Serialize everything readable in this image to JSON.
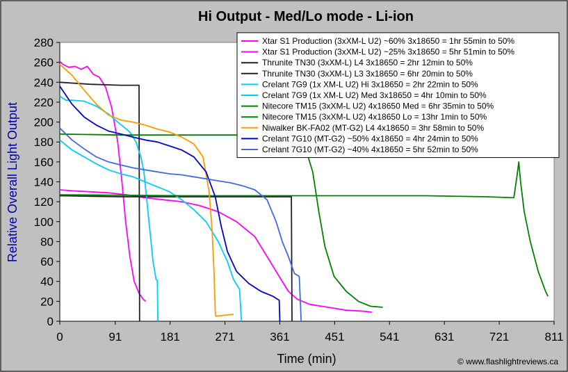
{
  "chart_data": {
    "type": "line",
    "title": "Hi Output - Med/Lo mode - Li-ion",
    "xlabel": "Time (min)",
    "ylabel": "Relative Overall Light Output",
    "xlim": [
      0,
      811
    ],
    "ylim": [
      0,
      280
    ],
    "xticks": [
      0,
      91,
      181,
      271,
      361,
      451,
      541,
      631,
      721,
      811
    ],
    "yticks": [
      0,
      20,
      40,
      60,
      80,
      100,
      120,
      140,
      160,
      180,
      200,
      220,
      240,
      260,
      280
    ],
    "grid": false,
    "legend_position": "top-right",
    "credit": "© www.flashlightreviews.ca",
    "series": [
      {
        "name": "Xtar S1 Production (3xXM-L U2) ~60% 3x18650 = 1hr 55min to 50%",
        "color": "#ff00ff",
        "points": [
          [
            0,
            261
          ],
          [
            5,
            258
          ],
          [
            15,
            255
          ],
          [
            25,
            256
          ],
          [
            35,
            253
          ],
          [
            45,
            256
          ],
          [
            55,
            248
          ],
          [
            65,
            245
          ],
          [
            75,
            235
          ],
          [
            85,
            215
          ],
          [
            95,
            180
          ],
          [
            102,
            140
          ],
          [
            108,
            100
          ],
          [
            115,
            65
          ],
          [
            122,
            40
          ],
          [
            130,
            28
          ],
          [
            137,
            22
          ],
          [
            141,
            20
          ]
        ]
      },
      {
        "name": "Xtar S1 Production (3xXM-L U2) ~25% 3x18650 = 5hr 51min to 50%",
        "color": "#ff00ff",
        "points": [
          [
            0,
            132
          ],
          [
            20,
            131
          ],
          [
            50,
            130
          ],
          [
            80,
            129
          ],
          [
            110,
            127
          ],
          [
            140,
            124
          ],
          [
            170,
            122
          ],
          [
            200,
            120
          ],
          [
            230,
            116
          ],
          [
            260,
            110
          ],
          [
            290,
            100
          ],
          [
            320,
            85
          ],
          [
            340,
            65
          ],
          [
            360,
            45
          ],
          [
            375,
            30
          ],
          [
            390,
            22
          ],
          [
            410,
            17
          ],
          [
            440,
            14
          ],
          [
            470,
            11
          ],
          [
            500,
            10
          ],
          [
            512,
            9
          ]
        ]
      },
      {
        "name": "Thrunite TN30 (3xXM-L) L4 3x18650 = 2hr 12min to 50%",
        "color": "#202020",
        "points": [
          [
            0,
            240
          ],
          [
            50,
            238
          ],
          [
            100,
            237
          ],
          [
            130,
            237
          ],
          [
            131,
            0
          ]
        ]
      },
      {
        "name": "Thrunite TN30 (3xXM-L) L3 3x18650 = 6hr 20min to 50%",
        "color": "#202020",
        "points": [
          [
            0,
            126
          ],
          [
            100,
            125
          ],
          [
            200,
            125
          ],
          [
            300,
            125
          ],
          [
            380,
            125
          ],
          [
            381,
            0
          ]
        ]
      },
      {
        "name": "Crelant 7G9 (1x XM-L U2) Hi 3x18650 = 2hr 22min to 50%",
        "color": "#00ccff",
        "points": [
          [
            0,
            226
          ],
          [
            10,
            222
          ],
          [
            20,
            222
          ],
          [
            40,
            221
          ],
          [
            60,
            216
          ],
          [
            80,
            208
          ],
          [
            95,
            200
          ],
          [
            105,
            195
          ],
          [
            115,
            190
          ],
          [
            125,
            180
          ],
          [
            133,
            165
          ],
          [
            138,
            150
          ],
          [
            143,
            120
          ],
          [
            148,
            90
          ],
          [
            153,
            60
          ],
          [
            158,
            42
          ],
          [
            160,
            41
          ],
          [
            161,
            0
          ]
        ]
      },
      {
        "name": "Crelant 7G9 (1x XM-L U2) Med 3x18650 = 4hr 10min to 50%",
        "color": "#00ccff",
        "points": [
          [
            0,
            182
          ],
          [
            20,
            172
          ],
          [
            40,
            165
          ],
          [
            60,
            158
          ],
          [
            80,
            152
          ],
          [
            100,
            148
          ],
          [
            120,
            145
          ],
          [
            140,
            140
          ],
          [
            160,
            135
          ],
          [
            180,
            130
          ],
          [
            200,
            122
          ],
          [
            220,
            112
          ],
          [
            240,
            100
          ],
          [
            260,
            80
          ],
          [
            275,
            60
          ],
          [
            285,
            42
          ],
          [
            295,
            32
          ],
          [
            298,
            0
          ]
        ]
      },
      {
        "name": "Nitecore TM15 (3xXM-L U2) 4x18650 Med = 6hr 35min to 50%",
        "color": "#008000",
        "points": [
          [
            0,
            188
          ],
          [
            100,
            187
          ],
          [
            200,
            187
          ],
          [
            300,
            187
          ],
          [
            380,
            187
          ],
          [
            400,
            180
          ],
          [
            415,
            150
          ],
          [
            425,
            110
          ],
          [
            435,
            75
          ],
          [
            450,
            45
          ],
          [
            470,
            30
          ],
          [
            490,
            20
          ],
          [
            510,
            15
          ],
          [
            530,
            14
          ]
        ]
      },
      {
        "name": "Nitecore TM15 (3xXM-L U2) 4x18650 Lo = 13hr 1min to 50%",
        "color": "#008000",
        "points": [
          [
            0,
            127
          ],
          [
            200,
            126
          ],
          [
            400,
            126
          ],
          [
            600,
            126
          ],
          [
            700,
            125
          ],
          [
            745,
            124
          ],
          [
            750,
            145
          ],
          [
            753,
            160
          ],
          [
            756,
            140
          ],
          [
            762,
            110
          ],
          [
            772,
            80
          ],
          [
            785,
            50
          ],
          [
            797,
            30
          ],
          [
            801,
            25
          ]
        ]
      },
      {
        "name": "Niwalker BK-FA02 (MT-G2) L4 4x18650 = 3hr 58min to 50%",
        "color": "#ff9900",
        "points": [
          [
            0,
            258
          ],
          [
            20,
            247
          ],
          [
            40,
            232
          ],
          [
            60,
            218
          ],
          [
            80,
            207
          ],
          [
            100,
            202
          ],
          [
            120,
            200
          ],
          [
            140,
            197
          ],
          [
            160,
            193
          ],
          [
            180,
            190
          ],
          [
            200,
            185
          ],
          [
            220,
            178
          ],
          [
            235,
            165
          ],
          [
            245,
            130
          ],
          [
            250,
            90
          ],
          [
            253,
            50
          ],
          [
            255,
            10
          ],
          [
            256,
            5
          ],
          [
            270,
            6
          ],
          [
            285,
            7
          ]
        ]
      },
      {
        "name": "Crelant 7G10 (MT-G2) ~50% 4x18650 = 4hr 24min to 50%",
        "color": "#0000cc",
        "points": [
          [
            0,
            236
          ],
          [
            20,
            218
          ],
          [
            40,
            205
          ],
          [
            60,
            197
          ],
          [
            80,
            191
          ],
          [
            100,
            188
          ],
          [
            120,
            185
          ],
          [
            140,
            182
          ],
          [
            160,
            180
          ],
          [
            180,
            176
          ],
          [
            200,
            172
          ],
          [
            220,
            165
          ],
          [
            240,
            150
          ],
          [
            255,
            125
          ],
          [
            265,
            95
          ],
          [
            275,
            70
          ],
          [
            290,
            50
          ],
          [
            310,
            38
          ],
          [
            330,
            30
          ],
          [
            350,
            25
          ],
          [
            360,
            21
          ],
          [
            361,
            0
          ]
        ]
      },
      {
        "name": "Crelant 7G10 (MT-G2) ~40% 4x18650 = 5hr 52min to 50%",
        "color": "#4169e1",
        "points": [
          [
            0,
            194
          ],
          [
            20,
            182
          ],
          [
            40,
            173
          ],
          [
            60,
            165
          ],
          [
            80,
            160
          ],
          [
            100,
            157
          ],
          [
            120,
            154
          ],
          [
            140,
            152
          ],
          [
            160,
            150
          ],
          [
            180,
            148
          ],
          [
            200,
            147
          ],
          [
            220,
            145
          ],
          [
            240,
            143
          ],
          [
            260,
            141
          ],
          [
            280,
            139
          ],
          [
            300,
            136
          ],
          [
            320,
            132
          ],
          [
            340,
            122
          ],
          [
            355,
            100
          ],
          [
            365,
            80
          ],
          [
            375,
            65
          ],
          [
            385,
            48
          ],
          [
            393,
            45
          ],
          [
            396,
            0
          ]
        ]
      }
    ]
  }
}
